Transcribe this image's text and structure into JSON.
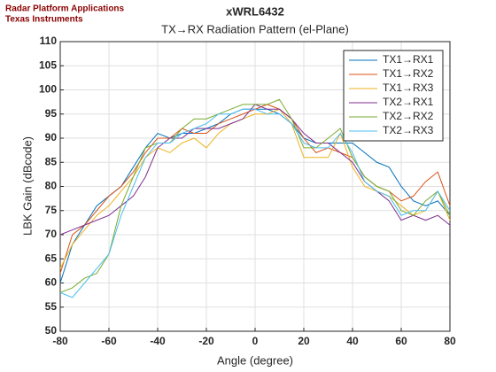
{
  "chart_data": {
    "type": "line",
    "title": "xWRL6432",
    "subtitle": "TX→RX Radiation Pattern (el-Plane)",
    "annotations": [
      "Radar Platform Applications",
      "Texas Instruments"
    ],
    "x_label": "Angle (degree)",
    "y_label": "LBK Gain (dBcode)",
    "x": [
      -80,
      -75,
      -70,
      -65,
      -60,
      -55,
      -50,
      -45,
      -40,
      -35,
      -30,
      -25,
      -20,
      -15,
      -10,
      -5,
      0,
      5,
      10,
      15,
      20,
      25,
      30,
      35,
      40,
      45,
      50,
      55,
      60,
      65,
      70,
      75,
      80
    ],
    "series": [
      {
        "name": "TX1→RX1",
        "color": "#0072BD",
        "values": [
          60,
          68,
          72,
          76,
          78,
          80,
          84,
          88,
          91,
          90,
          91,
          91,
          92,
          93,
          95,
          96,
          96,
          96,
          95,
          93,
          90,
          89,
          89,
          89,
          89,
          87,
          85,
          84,
          80,
          77,
          76,
          77,
          74
        ]
      },
      {
        "name": "TX1→RX2",
        "color": "#D95319",
        "values": [
          62,
          70,
          72,
          75,
          78,
          80,
          83,
          87,
          90,
          90,
          92,
          91,
          91,
          93,
          94,
          95,
          96,
          97,
          96,
          94,
          90,
          87,
          88,
          87,
          86,
          82,
          80,
          79,
          77,
          78,
          81,
          83,
          76
        ]
      },
      {
        "name": "TX1→RX3",
        "color": "#EDB120",
        "values": [
          63,
          68,
          71,
          74,
          76,
          79,
          82,
          86,
          88,
          87,
          89,
          90,
          88,
          91,
          93,
          94,
          95,
          95,
          96,
          93,
          86,
          86,
          86,
          91,
          84,
          80,
          79,
          78,
          76,
          74,
          75,
          79,
          73
        ]
      },
      {
        "name": "TX2→RX1",
        "color": "#7E2F8E",
        "values": [
          70,
          71,
          72,
          73,
          74,
          76,
          78,
          82,
          88,
          90,
          90,
          92,
          92,
          92,
          93,
          94,
          97,
          96,
          96,
          94,
          91,
          89,
          89,
          87,
          85,
          81,
          79,
          77,
          73,
          74,
          73,
          74,
          72
        ]
      },
      {
        "name": "TX2→RX2",
        "color": "#77AC30",
        "values": [
          58,
          59,
          61,
          62,
          66,
          76,
          82,
          88,
          89,
          89,
          92,
          94,
          94,
          95,
          96,
          97,
          97,
          97,
          98,
          94,
          88,
          88,
          90,
          92,
          86,
          82,
          80,
          79,
          75,
          74,
          77,
          79,
          74
        ]
      },
      {
        "name": "TX2→RX3",
        "color": "#4DBEEE",
        "values": [
          58,
          57,
          60,
          63,
          66,
          74,
          80,
          86,
          89,
          89,
          91,
          92,
          93,
          95,
          95,
          96,
          96,
          95,
          95,
          93,
          89,
          88,
          88,
          91,
          87,
          81,
          79,
          78,
          74,
          75,
          75,
          79,
          75
        ]
      }
    ],
    "xlim": [
      -80,
      80
    ],
    "ylim": [
      50,
      110
    ],
    "xticks": [
      -80,
      -60,
      -40,
      -20,
      0,
      20,
      40,
      60,
      80
    ],
    "yticks": [
      50,
      55,
      60,
      65,
      70,
      75,
      80,
      85,
      90,
      95,
      100,
      105,
      110
    ],
    "grid": true,
    "legend": "upper right"
  }
}
